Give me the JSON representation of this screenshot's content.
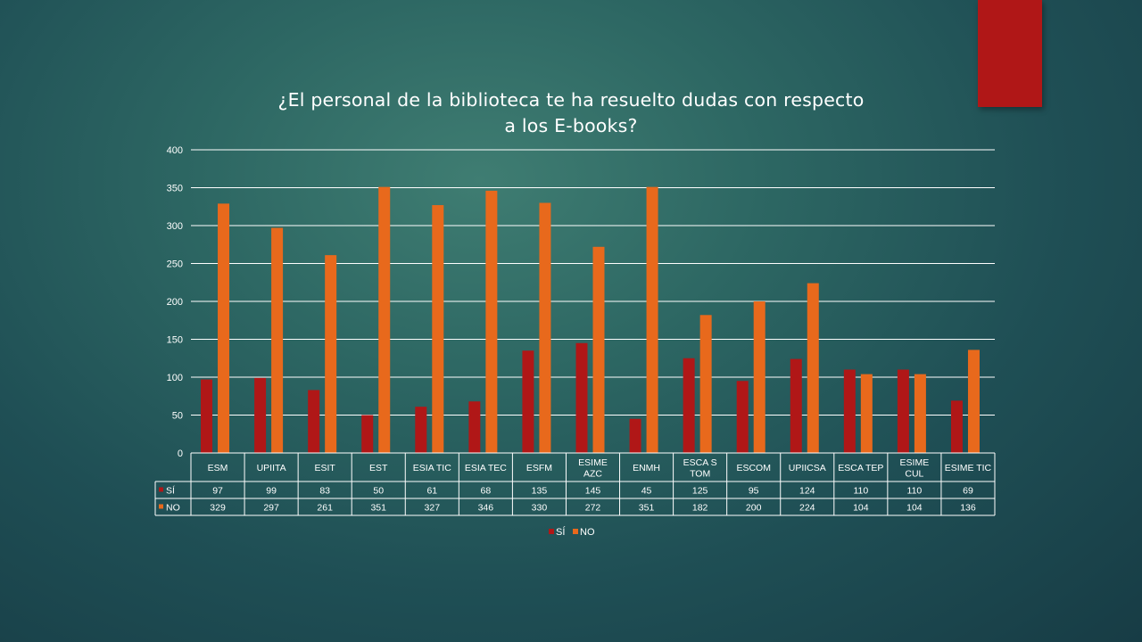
{
  "colors": {
    "accent": "#b01717",
    "si": "#b01717",
    "no": "#e8691c",
    "grid": "#ffffff"
  },
  "chart_data": {
    "type": "bar",
    "title": "¿El personal de la biblioteca te ha resuelto dudas con respecto a los E-books?",
    "title_lines": [
      "¿El personal de la biblioteca te ha resuelto dudas con respecto",
      "a los E-books?"
    ],
    "ylim": [
      0,
      400
    ],
    "yticks": [
      0,
      50,
      100,
      150,
      200,
      250,
      300,
      350,
      400
    ],
    "categories": [
      "ESM",
      "UPIITA",
      "ESIT",
      "EST",
      "ESIA TIC",
      "ESIA TEC",
      "ESFM",
      "ESIME AZC",
      "ENMH",
      "ESCA S TOM",
      "ESCOM",
      "UPIICSA",
      "ESCA TEP",
      "ESIME CUL",
      "ESIME TIC"
    ],
    "category_lines": [
      [
        "ESM"
      ],
      [
        "UPIITA"
      ],
      [
        "ESIT"
      ],
      [
        "EST"
      ],
      [
        "ESIA TIC"
      ],
      [
        "ESIA TEC"
      ],
      [
        "ESFM"
      ],
      [
        "ESIME",
        "AZC"
      ],
      [
        "ENMH"
      ],
      [
        "ESCA S",
        "TOM"
      ],
      [
        "ESCOM"
      ],
      [
        "UPIICSA"
      ],
      [
        "ESCA TEP"
      ],
      [
        "ESIME",
        "CUL"
      ],
      [
        "ESIME TIC"
      ]
    ],
    "series": [
      {
        "name": "SÍ",
        "color": "#b01717",
        "values": [
          97,
          99,
          83,
          50,
          61,
          68,
          135,
          145,
          45,
          125,
          95,
          124,
          110,
          110,
          69
        ]
      },
      {
        "name": "NO",
        "color": "#e8691c",
        "values": [
          329,
          297,
          261,
          351,
          327,
          346,
          330,
          272,
          351,
          182,
          200,
          224,
          104,
          104,
          136
        ]
      }
    ],
    "grid": true,
    "legend": "bottom",
    "data_table": true
  }
}
